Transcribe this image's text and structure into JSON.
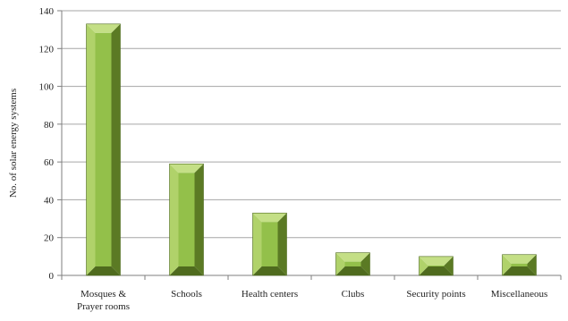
{
  "chart_data": {
    "type": "bar",
    "title": "",
    "xlabel": "",
    "ylabel": "No. of solar energy systems",
    "categories": [
      [
        "Mosques &",
        "Prayer rooms"
      ],
      [
        "Schools"
      ],
      [
        "Health centers"
      ],
      [
        "Clubs"
      ],
      [
        "Security points"
      ],
      [
        "Miscellaneous"
      ]
    ],
    "values": [
      133,
      59,
      33,
      12,
      10,
      11
    ],
    "ylim": [
      0,
      140
    ],
    "yticks": [
      "0",
      "20",
      "40",
      "60",
      "80",
      "100",
      "120",
      "140"
    ],
    "grid": true,
    "legend": "none",
    "bar_style": "3d-bevel",
    "colors": {
      "face": "#93c04a",
      "bevel_top": "#c4df86",
      "bevel_left": "#b0d26a",
      "bevel_right": "#5b7a24",
      "bevel_bottom": "#4f6b1e",
      "grid": "#a6a6a6",
      "axis": "#7f7f7f"
    }
  }
}
